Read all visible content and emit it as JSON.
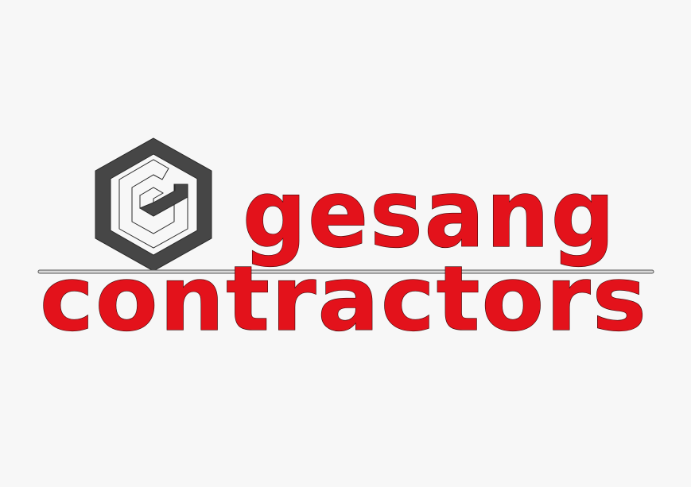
{
  "logo": {
    "line1": "gesang",
    "line2": "contractors",
    "icon": "hexagon-g-icon"
  },
  "colors": {
    "background": "#f7f7f7",
    "wordmark": "#e3121b",
    "mark": "#464646",
    "rule": "#9a9a9a"
  }
}
